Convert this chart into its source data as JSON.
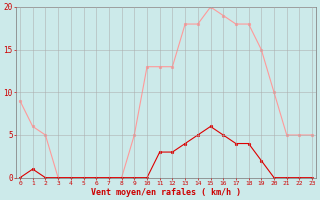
{
  "hours": [
    0,
    1,
    2,
    3,
    4,
    5,
    6,
    7,
    8,
    9,
    10,
    11,
    12,
    13,
    14,
    15,
    16,
    17,
    18,
    19,
    20,
    21,
    22,
    23
  ],
  "wind_gust": [
    9,
    6,
    5,
    0,
    0,
    0,
    0,
    0,
    0,
    5,
    13,
    13,
    13,
    18,
    18,
    20,
    19,
    18,
    18,
    15,
    10,
    5,
    5,
    5
  ],
  "wind_avg": [
    0,
    1,
    0,
    0,
    0,
    0,
    0,
    0,
    0,
    0,
    0,
    3,
    3,
    4,
    5,
    6,
    5,
    4,
    4,
    2,
    0,
    0,
    0,
    0
  ],
  "xlabel": "Vent moyen/en rafales ( km/h )",
  "ylim": [
    0,
    20
  ],
  "yticks": [
    0,
    5,
    10,
    15,
    20
  ],
  "xticks": [
    0,
    1,
    2,
    3,
    4,
    5,
    6,
    7,
    8,
    9,
    10,
    11,
    12,
    13,
    14,
    15,
    16,
    17,
    18,
    19,
    20,
    21,
    22,
    23
  ],
  "bg_color": "#cceaea",
  "grid_color": "#aaaaaa",
  "line_color_gust": "#ff9999",
  "line_color_avg": "#dd0000",
  "tick_color": "#cc0000",
  "label_color": "#cc0000",
  "spine_color": "#888888"
}
